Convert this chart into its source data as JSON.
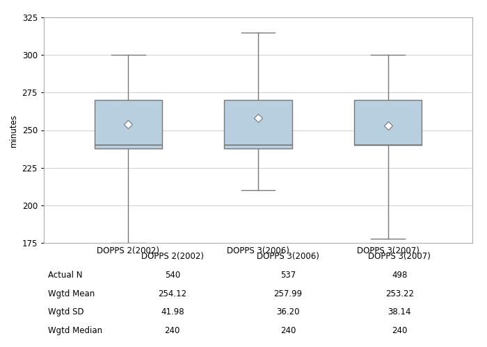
{
  "ylabel": "minutes",
  "ylim": [
    175,
    325
  ],
  "yticks": [
    175,
    200,
    225,
    250,
    275,
    300,
    325
  ],
  "categories": [
    "DOPPS 2(2002)",
    "DOPPS 3(2006)",
    "DOPPS 3(2007)"
  ],
  "boxes": [
    {
      "whislo": 175,
      "q1": 238,
      "med": 240,
      "q3": 270,
      "whishi": 300,
      "mean": 254.12
    },
    {
      "whislo": 210,
      "q1": 238,
      "med": 240,
      "q3": 270,
      "whishi": 315,
      "mean": 257.99
    },
    {
      "whislo": 178,
      "q1": 240,
      "med": 240,
      "q3": 270,
      "whishi": 300,
      "mean": 253.22
    }
  ],
  "table_header": [
    "",
    "DOPPS 2(2002)",
    "DOPPS 3(2006)",
    "DOPPS 3(2007)"
  ],
  "table_rows": [
    "Actual N",
    "Wgtd Mean",
    "Wgtd SD",
    "Wgtd Median"
  ],
  "table_data": [
    [
      "540",
      "537",
      "498"
    ],
    [
      "254.12",
      "257.99",
      "253.22"
    ],
    [
      "41.98",
      "36.20",
      "38.14"
    ],
    [
      "240",
      "240",
      "240"
    ]
  ],
  "box_color": "#b8cfe0",
  "box_edge_color": "#777777",
  "median_color": "#777777",
  "whisker_color": "#777777",
  "mean_marker_color": "white",
  "mean_marker_edge_color": "#777777",
  "background_color": "#ffffff",
  "grid_color": "#d0d0d0",
  "border_color": "#aaaaaa"
}
